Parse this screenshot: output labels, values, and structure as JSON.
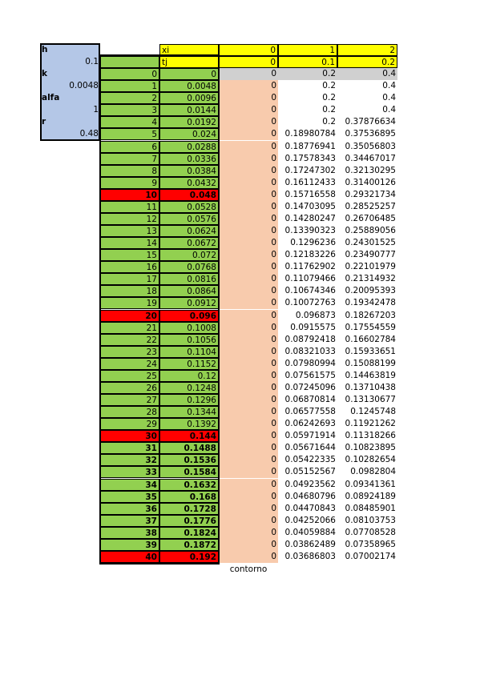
{
  "params": [
    {
      "label": "h",
      "value": 0.1
    },
    {
      "label": "k",
      "value": 0.0048
    },
    {
      "label": "alfa",
      "value": 1
    },
    {
      "label": "r",
      "value": 0.48
    }
  ],
  "table": {
    "header_rows": [
      [
        "xi",
        0,
        1,
        2
      ],
      [
        "tj",
        0,
        0.1,
        0.2
      ]
    ],
    "rows": [
      [
        0,
        0,
        0,
        0.2,
        0.4
      ],
      [
        1,
        0.0048,
        0,
        0.2,
        0.4
      ],
      [
        2,
        0.0096,
        0,
        0.2,
        0.4
      ],
      [
        3,
        0.0144,
        0,
        0.2,
        0.4
      ],
      [
        4,
        0.0192,
        0,
        0.2,
        0.37876634
      ],
      [
        5,
        0.024,
        0,
        0.18980784,
        0.37536895
      ],
      [
        6,
        0.0288,
        0,
        0.18776941,
        0.35056803
      ],
      [
        7,
        0.0336,
        0,
        0.17578343,
        0.34467017
      ],
      [
        8,
        0.0384,
        0,
        0.17247302,
        0.32130295
      ],
      [
        9,
        0.0432,
        0,
        0.16112433,
        0.31400126
      ],
      [
        10,
        0.048,
        0,
        0.15716558,
        0.29321734
      ],
      [
        11,
        0.0528,
        0,
        0.14703095,
        0.28525257
      ],
      [
        12,
        0.0576,
        0,
        0.14280247,
        0.26706485
      ],
      [
        13,
        0.0624,
        0,
        0.13390323,
        0.25889056
      ],
      [
        14,
        0.0672,
        0,
        0.1296236,
        0.24301525
      ],
      [
        15,
        0.072,
        0,
        0.12183226,
        0.23490777
      ],
      [
        16,
        0.0768,
        0,
        0.11762902,
        0.22101979
      ],
      [
        17,
        0.0816,
        0,
        0.11079466,
        0.21314932
      ],
      [
        18,
        0.0864,
        0,
        0.10674346,
        0.20095393
      ],
      [
        19,
        0.0912,
        0,
        0.10072763,
        0.19342478
      ],
      [
        20,
        0.096,
        0,
        0.096873,
        0.18267203
      ],
      [
        21,
        0.1008,
        0,
        0.0915575,
        0.17554559
      ],
      [
        22,
        0.1056,
        0,
        0.08792418,
        0.16602784
      ],
      [
        23,
        0.1104,
        0,
        0.08321033,
        0.15933651
      ],
      [
        24,
        0.1152,
        0,
        0.07980994,
        0.15088199
      ],
      [
        25,
        0.12,
        0,
        0.07561575,
        0.14463819
      ],
      [
        26,
        0.1248,
        0,
        0.07245096,
        0.13710438
      ],
      [
        27,
        0.1296,
        0,
        0.06870814,
        0.13130677
      ],
      [
        28,
        0.1344,
        0,
        0.06577558,
        0.1245748
      ],
      [
        29,
        0.1392,
        0,
        0.06242693,
        0.11921262
      ],
      [
        30,
        0.144,
        0,
        0.05971914,
        0.11318266
      ],
      [
        31,
        0.1488,
        0,
        0.05671644,
        0.10823895
      ],
      [
        32,
        0.1536,
        0,
        0.05422335,
        0.10282654
      ],
      [
        33,
        0.1584,
        0,
        0.05152567,
        0.0982804
      ],
      [
        34,
        0.1632,
        0,
        0.04923562,
        0.09341361
      ],
      [
        35,
        0.168,
        0,
        0.04680796,
        0.08924189
      ],
      [
        36,
        0.1728,
        0,
        0.04470843,
        0.08485901
      ],
      [
        37,
        0.1776,
        0,
        0.04252066,
        0.08103753
      ],
      [
        38,
        0.1824,
        0,
        0.04059884,
        0.07708528
      ],
      [
        39,
        0.1872,
        0,
        0.03862489,
        0.07358965
      ],
      [
        40,
        0.192,
        0,
        0.03686803,
        0.07002174
      ]
    ]
  },
  "footer": "contorno"
}
